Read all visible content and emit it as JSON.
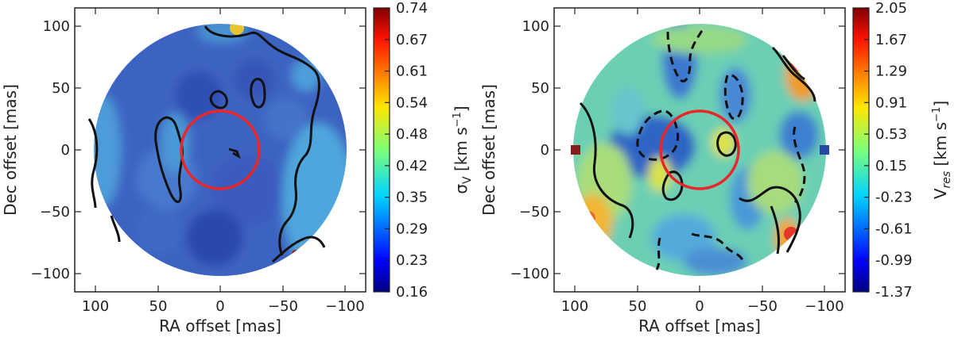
{
  "chart_data": [
    {
      "type": "heatmap",
      "panel": "left",
      "title": "",
      "xlabel": "RA offset [mas]",
      "ylabel": "Dec offset [mas]",
      "xlim": [
        115,
        -115
      ],
      "ylim": [
        -115,
        115
      ],
      "xticks": [
        "100",
        "50",
        "0",
        "−50",
        "−100"
      ],
      "xtick_values": [
        100,
        50,
        0,
        -50,
        -100
      ],
      "yticks": [
        "100",
        "50",
        "0",
        "−50",
        "−100"
      ],
      "ytick_values": [
        100,
        50,
        0,
        -50,
        -100
      ],
      "colorbar": {
        "label": "σ_V [km s⁻¹]",
        "label_main": "σ",
        "label_sub": "V",
        "label_unit": "[km s",
        "label_exp": "−1",
        "label_close": "]",
        "ticks": [
          "0.74",
          "0.67",
          "0.61",
          "0.54",
          "0.48",
          "0.42",
          "0.35",
          "0.29",
          "0.23",
          "0.16"
        ],
        "range": [
          0.16,
          0.74
        ]
      },
      "field_radius_mas": 100,
      "circle": {
        "center": [
          0,
          0
        ],
        "radius_mas": 31,
        "color": "#e8272b"
      },
      "background_value": 0.26
    },
    {
      "type": "heatmap",
      "panel": "right",
      "title": "",
      "xlabel": "RA offset [mas]",
      "ylabel": "Dec offset [mas]",
      "xlim": [
        115,
        -115
      ],
      "ylim": [
        -115,
        115
      ],
      "xticks": [
        "100",
        "50",
        "0",
        "−50",
        "−100"
      ],
      "xtick_values": [
        100,
        50,
        0,
        -50,
        -100
      ],
      "yticks": [
        "100",
        "50",
        "0",
        "−50",
        "−100"
      ],
      "ytick_values": [
        100,
        50,
        0,
        -50,
        -100
      ],
      "colorbar": {
        "label": "V_res [km s⁻¹]",
        "label_main": "V",
        "label_sub": "res",
        "label_unit": "[km s",
        "label_exp": "−1",
        "label_close": "]",
        "ticks": [
          "2.05",
          "1.67",
          "1.29",
          "0.91",
          "0.53",
          "0.15",
          "-0.23",
          "-0.61",
          "-0.99",
          "-1.37"
        ],
        "range": [
          -1.37,
          2.05
        ]
      },
      "field_radius_mas": 100,
      "circle": {
        "center": [
          0,
          0
        ],
        "radius_mas": 31,
        "color": "#e8272b"
      },
      "background_value": 0.35
    }
  ]
}
